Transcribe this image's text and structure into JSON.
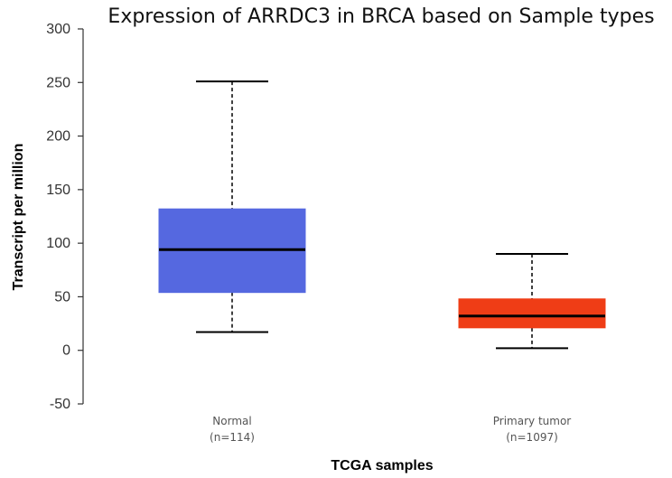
{
  "chart_data": {
    "type": "box",
    "title": "Expression of ARRDC3 in BRCA based on Sample types",
    "xlabel": "TCGA samples",
    "ylabel": "Transcript per million",
    "ylim": [
      -50,
      300
    ],
    "yticks": [
      -50,
      0,
      50,
      100,
      150,
      200,
      250,
      300
    ],
    "grid": false,
    "groups": [
      {
        "label": "Normal",
        "count": "(n=114)",
        "color": "#5568e0",
        "min": 17,
        "q1": 54,
        "median": 94,
        "q3": 132,
        "max": 251
      },
      {
        "label": "Primary tumor",
        "count": "(n=1097)",
        "color": "#ef3d16",
        "min": 2,
        "q1": 21,
        "median": 32,
        "q3": 48,
        "max": 90
      }
    ]
  }
}
